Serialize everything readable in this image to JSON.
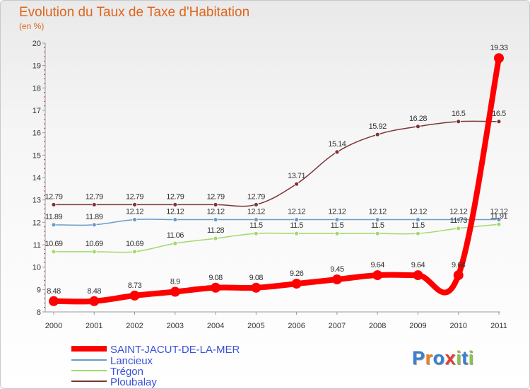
{
  "header": {
    "title": "Evolution du Taux de Taxe d'Habitation",
    "subtitle": "(en %)"
  },
  "logo": {
    "text": "Proxiti",
    "colors": [
      "#3a7fd0",
      "#e8821e",
      "#3a7fd0",
      "#e53935",
      "#8bc34a",
      "#3a7fd0",
      "#8bc34a"
    ]
  },
  "chart_data": {
    "type": "line",
    "title": "Evolution du Taux de Taxe d'Habitation",
    "subtitle": "(en %)",
    "xlabel": "",
    "ylabel": "",
    "x": [
      "2000",
      "2001",
      "2002",
      "2003",
      "2004",
      "2005",
      "2006",
      "2007",
      "2008",
      "2009",
      "2010",
      "2011"
    ],
    "ylim": [
      8,
      20
    ],
    "yticks": [
      "8",
      "9",
      "10",
      "11",
      "12",
      "13",
      "14",
      "15",
      "16",
      "17",
      "18",
      "19",
      "20"
    ],
    "grid": false,
    "legend_position": "bottom-left",
    "series": [
      {
        "name": "SAINT-JACUT-DE-LA-MER",
        "color": "#ff0000",
        "values": [
          8.48,
          8.48,
          8.73,
          8.9,
          9.08,
          9.08,
          9.26,
          9.45,
          9.64,
          9.64,
          9.64,
          19.33
        ],
        "labels": [
          "8.48",
          "8.48",
          "8.73",
          "8.9",
          "9.08",
          "9.08",
          "9.26",
          "9.45",
          "9.64",
          "9.64",
          "9.64",
          "19.33"
        ]
      },
      {
        "name": "Lancieux",
        "color": "#6a9cc8",
        "values": [
          11.89,
          11.89,
          12.12,
          12.12,
          12.12,
          12.12,
          12.12,
          12.12,
          12.12,
          12.12,
          12.12,
          12.12
        ],
        "labels": [
          "11.89",
          "11.89",
          "12.12",
          "12.12",
          "12.12",
          "12.12",
          "12.12",
          "12.12",
          "12.12",
          "12.12",
          "12.12",
          "12.12"
        ]
      },
      {
        "name": "Trégon",
        "color": "#a2d96a",
        "values": [
          10.69,
          10.69,
          10.69,
          11.06,
          11.28,
          11.5,
          11.5,
          11.5,
          11.5,
          11.5,
          11.73,
          11.91
        ],
        "labels": [
          "10.69",
          "10.69",
          "10.69",
          "11.06",
          "11.28",
          "11.5",
          "11.5",
          "11.5",
          "11.5",
          "11.5",
          "11.73",
          "11.91"
        ]
      },
      {
        "name": "Ploubalay",
        "color": "#7d3434",
        "values": [
          12.79,
          12.79,
          12.79,
          12.79,
          12.79,
          12.79,
          13.71,
          15.14,
          15.92,
          16.28,
          16.5,
          16.5
        ],
        "labels": [
          "12.79",
          "12.79",
          "12.79",
          "12.79",
          "12.79",
          "12.79",
          "13.71",
          "15.14",
          "15.92",
          "16.28",
          "16.5",
          "16.5"
        ]
      }
    ]
  }
}
